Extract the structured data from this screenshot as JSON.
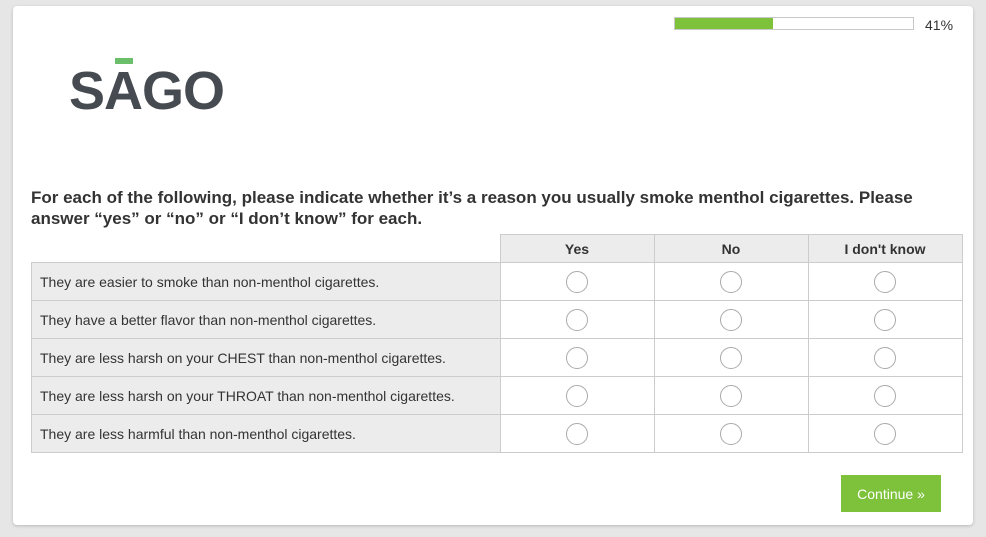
{
  "progress": {
    "percent": 41,
    "label": "41%"
  },
  "logo": {
    "text": "SAGO"
  },
  "question": "For each of the following, please indicate whether it’s a reason you usually smoke menthol cigarettes. Please answer “yes” or “no” or “I don’t know” for each.",
  "columns": [
    "Yes",
    "No",
    "I don't know"
  ],
  "rows": [
    "They are easier to smoke than non-menthol cigarettes.",
    "They have a better flavor than non-menthol cigarettes.",
    "They are less harsh on your CHEST than non-menthol cigarettes.",
    "They are less harsh on your THROAT than non-menthol cigarettes.",
    "They are less harmful than non-menthol cigarettes."
  ],
  "continue_label": "Continue »",
  "colors": {
    "accent": "#7dc23a"
  }
}
